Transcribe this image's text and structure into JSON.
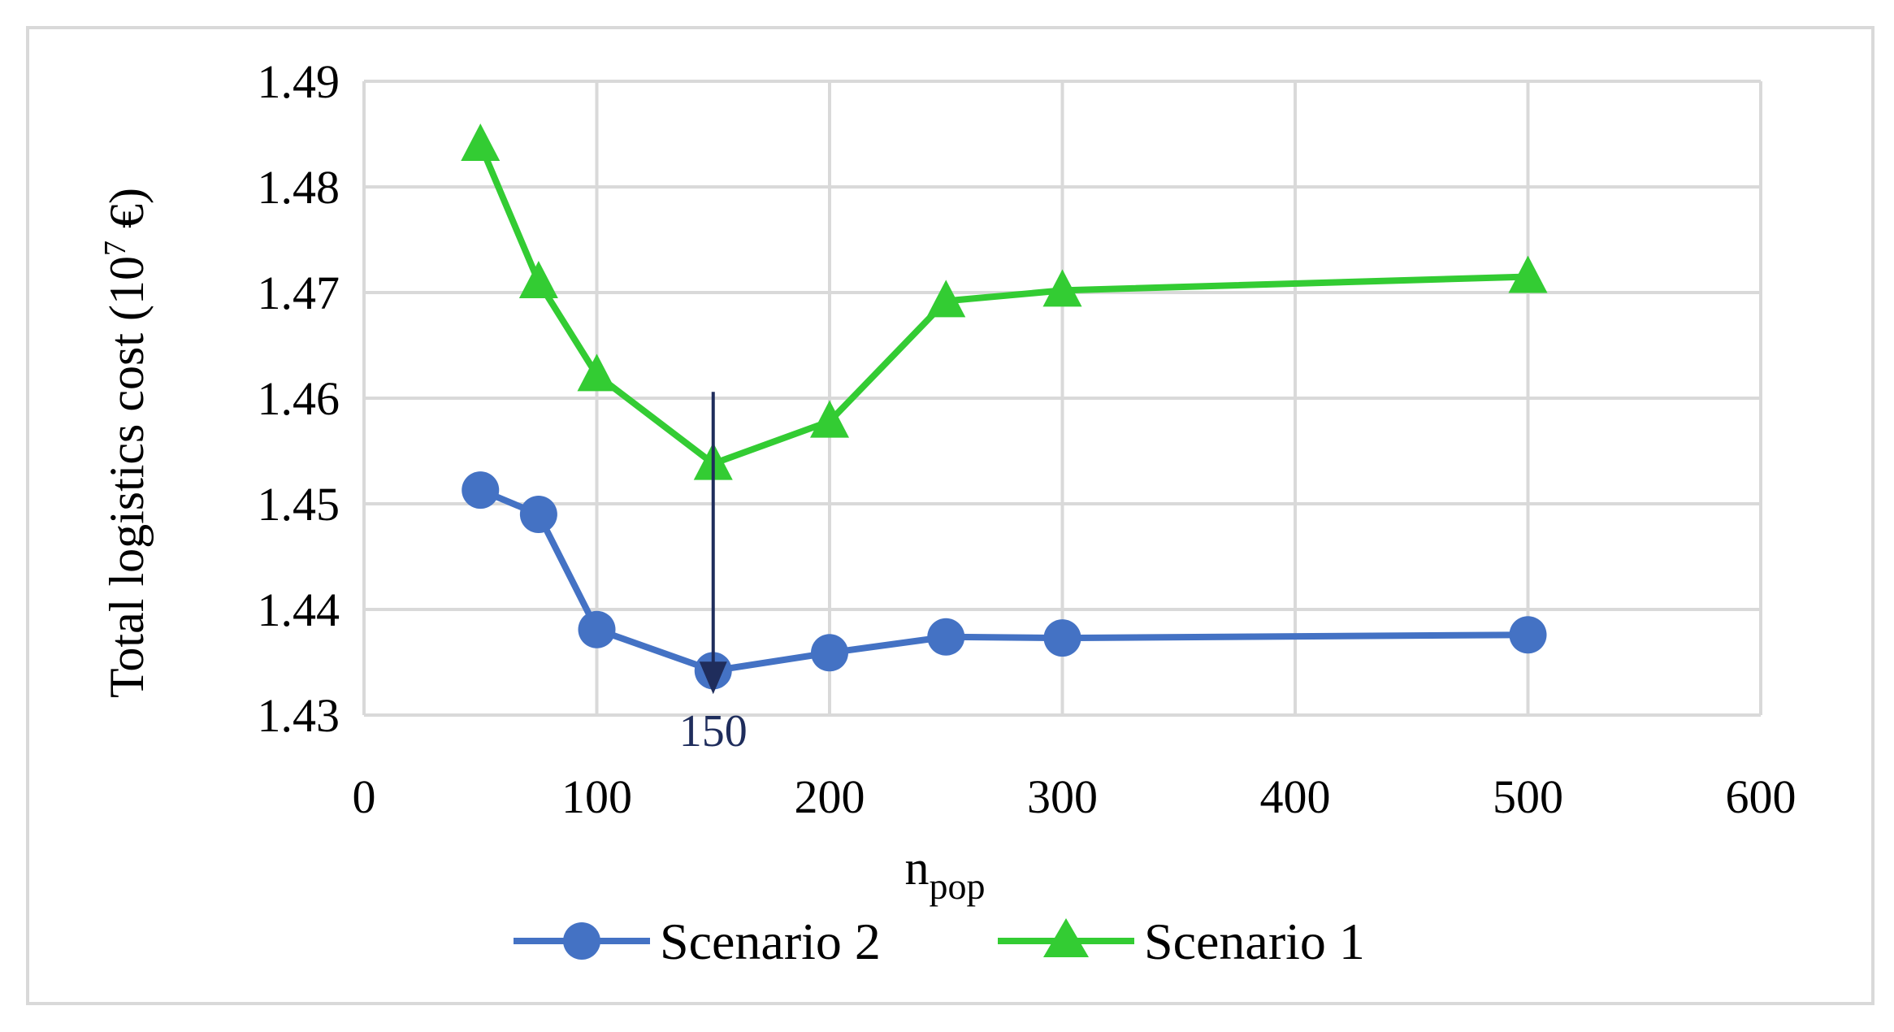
{
  "chart_data": {
    "type": "line",
    "title": "",
    "xlabel": "n",
    "xlabel_sub": "pop",
    "ylabel": "Total logistics cost (10",
    "ylabel_sup": "7",
    "ylabel_tail": " €)",
    "xlim": [
      0,
      600
    ],
    "ylim": [
      1.43,
      1.49
    ],
    "x_ticks": [
      0,
      100,
      200,
      300,
      400,
      500,
      600
    ],
    "x_tick_labels": [
      "0",
      "100",
      "200",
      "300",
      "400",
      "500",
      "600"
    ],
    "y_ticks": [
      1.43,
      1.44,
      1.45,
      1.46,
      1.47,
      1.48,
      1.49
    ],
    "y_tick_labels": [
      "1.43",
      "1.44",
      "1.45",
      "1.46",
      "1.47",
      "1.48",
      "1.49"
    ],
    "grid": true,
    "legend_position": "bottom",
    "series": [
      {
        "name": "Scenario 2",
        "color": "#4472c4",
        "marker": "circle",
        "x": [
          50,
          75,
          100,
          150,
          200,
          250,
          300,
          500
        ],
        "y": [
          1.4513,
          1.449,
          1.4381,
          1.4342,
          1.4359,
          1.4374,
          1.4373,
          1.4376
        ]
      },
      {
        "name": "Scenario 1",
        "color": "#33cc33",
        "marker": "triangle",
        "x": [
          50,
          75,
          100,
          150,
          200,
          250,
          300,
          500
        ],
        "y": [
          1.484,
          1.471,
          1.4622,
          1.4538,
          1.4578,
          1.4692,
          1.4702,
          1.4715
        ]
      }
    ],
    "annotations": [
      {
        "text": "150",
        "x": 150,
        "y_from": 1.4606,
        "y_to": 1.4326,
        "color": "#1f2d5c"
      }
    ]
  }
}
